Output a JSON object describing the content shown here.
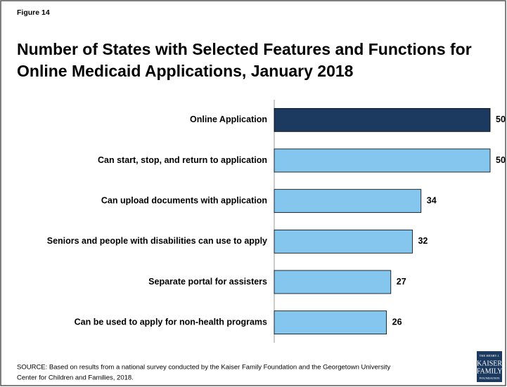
{
  "chart_data": {
    "type": "barh",
    "figure_label": "Figure 14",
    "title": [
      "Number of States with Selected Features and Functions for",
      "Online Medicaid Applications, January 2018"
    ],
    "categories": [
      "Online Application",
      "Can start, stop, and return to application",
      "Can upload documents with application",
      "Seniors and people with disabilities can use to apply",
      "Separate portal for assisters",
      "Can be used to apply for non-health programs"
    ],
    "values": [
      50,
      50,
      34,
      32,
      27,
      26
    ],
    "colors": [
      "#1c3a60",
      "#84c6ee",
      "#84c6ee",
      "#84c6ee",
      "#84c6ee",
      "#84c6ee"
    ],
    "xlim": [
      0,
      50
    ],
    "source": [
      "SOURCE: Based on results from a national survey conducted by the Kaiser Family Foundation and the Georgetown University",
      "Center for Children and Families, 2018."
    ],
    "logo": [
      "THE HENRY J.",
      "KAISER",
      "FAMILY",
      "FOUNDATION"
    ]
  }
}
